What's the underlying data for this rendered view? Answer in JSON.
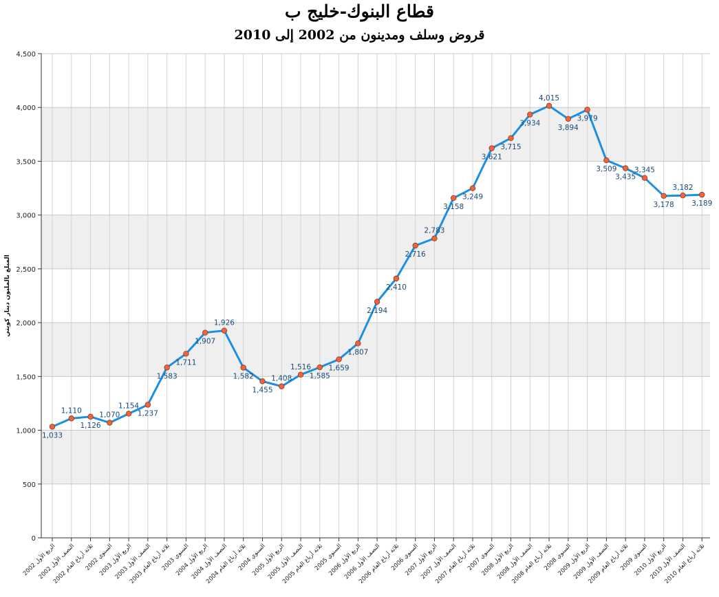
{
  "chart_data": {
    "type": "line",
    "title": "قطاع البنوك-خليج ب",
    "subtitle": "قروض وسلف ومدينون من 2002 إلى 2010",
    "ylabel": "المبلغ بالمليون دينار كويتي",
    "xlabel": "",
    "ylim": [
      0,
      4500
    ],
    "yticks": [
      "0",
      "500",
      "1,000",
      "1,500",
      "2,000",
      "2,500",
      "3,000",
      "3,500",
      "4,000",
      "4,500"
    ],
    "categories": [
      "الربع الأول 2002",
      "النصف الأول 2002",
      "ثلاثة أرباع العام 2002",
      "السنوي 2002",
      "الربع الأول 2003",
      "النصف الأول 2003",
      "ثلاثة أرباع العام 2003",
      "السنوي 2003",
      "الربع الأول 2004",
      "النصف الأول 2004",
      "ثلاثة أرباع العام 2004",
      "السنوي 2004",
      "الربع الأول 2005",
      "النصف الأول 2005",
      "ثلاثة أرباع العام 2005",
      "السنوي 2005",
      "الربع الأول 2006",
      "النصف الأول 2006",
      "ثلاثة أرباع العام 2006",
      "السنوي 2006",
      "الربع الأول 2007",
      "النصف الأول 2007",
      "ثلاثة أرباع العام 2007",
      "السنوي 2007",
      "الربع الأول 2008",
      "النصف الأول 2008",
      "ثلاثة أرباع العام 2008",
      "السنوي 2008",
      "الربع الأول 2009",
      "النصف الأول 2009",
      "ثلاثة أرباع العام 2009",
      "السنوي 2009",
      "الربع الأول 2010",
      "النصف الأول 2010",
      "ثلاثة أرباع العام 2010"
    ],
    "series": [
      {
        "values": [
          1033,
          1110,
          1126,
          1070,
          1154,
          1237,
          1583,
          1711,
          1907,
          1926,
          1582,
          1455,
          1408,
          1516,
          1585,
          1659,
          1807,
          2194,
          2410,
          2716,
          2783,
          3158,
          3249,
          3621,
          3715,
          3934,
          4015,
          3894,
          3979,
          3509,
          3435,
          3345,
          3178,
          3182,
          3189
        ],
        "labels": [
          "1,033",
          "1,110",
          "1,126",
          "1,070",
          "1,154",
          "1,237",
          "1,583",
          "1,711",
          "1,907",
          "1,926",
          "1,582",
          "1,455",
          "1,408",
          "1,516",
          "1,585",
          "1,659",
          "1,807",
          "2,194",
          "2,410",
          "2,716",
          "2,783",
          "3,158",
          "3,249",
          "3,621",
          "3,715",
          "3,934",
          "4,015",
          "3,894",
          "3,979",
          "3,509",
          "3,435",
          "3,345",
          "3,178",
          "3,182",
          "3,189"
        ],
        "label_position": [
          "below",
          "above",
          "below",
          "above",
          "above",
          "below",
          "below",
          "below",
          "below",
          "above",
          "below",
          "below",
          "above",
          "above",
          "below",
          "below",
          "below",
          "below",
          "below",
          "below",
          "above",
          "below",
          "below",
          "below",
          "below",
          "below",
          "above",
          "below",
          "below",
          "below",
          "below",
          "above",
          "below",
          "above",
          "below"
        ],
        "line_color": "#1a8fe3",
        "marker_color": "#f0643c"
      }
    ],
    "band_color": "#efefef",
    "grid": true,
    "legend": "none"
  }
}
